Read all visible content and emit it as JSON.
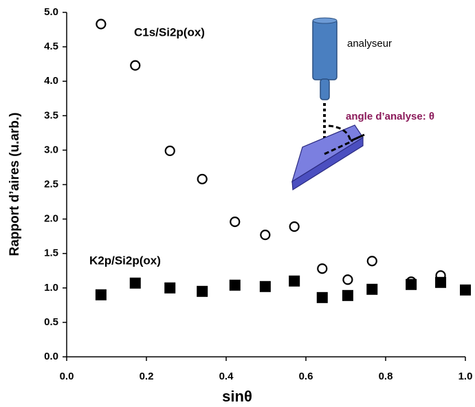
{
  "chart_data": {
    "type": "scatter",
    "x_label": "sinθ",
    "y_label": "Rapport d’aires  (u.arb.)",
    "xlim": [
      0,
      1
    ],
    "ylim": [
      0,
      5
    ],
    "xticks": [
      {
        "value": 0,
        "label": "0.0"
      },
      {
        "value": 0.2,
        "label": "0.2"
      },
      {
        "value": 0.4,
        "label": "0.4"
      },
      {
        "value": 0.6,
        "label": "0.6"
      },
      {
        "value": 0.8,
        "label": "0.8"
      },
      {
        "value": 1,
        "label": "1.0"
      }
    ],
    "yticks": [
      {
        "value": 0,
        "label": "0.0"
      },
      {
        "value": 0.5,
        "label": "0.5"
      },
      {
        "value": 1,
        "label": "1.0"
      },
      {
        "value": 1.5,
        "label": "1.5"
      },
      {
        "value": 2,
        "label": "2.0"
      },
      {
        "value": 2.5,
        "label": "2.5"
      },
      {
        "value": 3,
        "label": "3.0"
      },
      {
        "value": 3.5,
        "label": "3.5"
      },
      {
        "value": 4,
        "label": "4.0"
      },
      {
        "value": 4.5,
        "label": "4.5"
      },
      {
        "value": 5,
        "label": "5.0"
      }
    ],
    "annotations": [
      "analyseur",
      "angle d’analyse: θ"
    ],
    "series": [
      {
        "name": "C1s/Si2p(ox)",
        "marker": "open-circle",
        "color": "#000000",
        "x": [
          0.086,
          0.172,
          0.259,
          0.34,
          0.422,
          0.498,
          0.571,
          0.641,
          0.705,
          0.766,
          0.864,
          0.938
        ],
        "values": [
          4.83,
          4.23,
          2.99,
          2.58,
          1.96,
          1.77,
          1.89,
          1.28,
          1.12,
          1.39,
          1.09,
          1.18
        ]
      },
      {
        "name": "K2p/Si2p(ox)",
        "marker": "filled-square",
        "color": "#000000",
        "x": [
          0.086,
          0.172,
          0.259,
          0.34,
          0.422,
          0.498,
          0.571,
          0.641,
          0.705,
          0.766,
          0.864,
          0.938,
          1.0
        ],
        "values": [
          0.9,
          1.07,
          1.0,
          0.95,
          1.04,
          1.02,
          1.1,
          0.86,
          0.89,
          0.98,
          1.05,
          1.08,
          0.97
        ]
      }
    ]
  }
}
